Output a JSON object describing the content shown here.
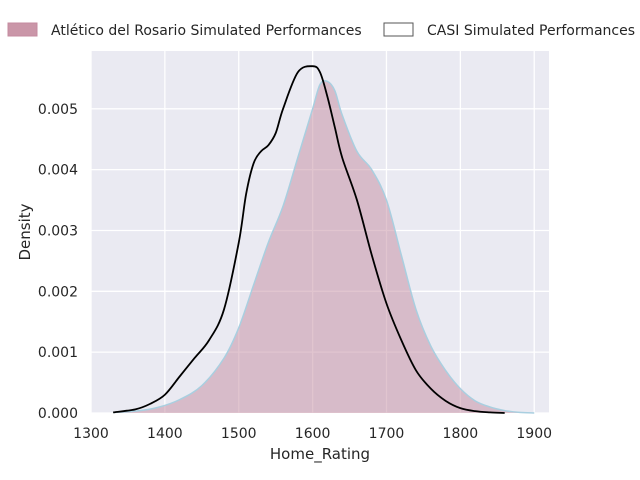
{
  "chart_data": {
    "type": "area",
    "title": "",
    "xlabel": "Home_Rating",
    "ylabel": "Density",
    "xlim": [
      1300,
      1920
    ],
    "ylim": [
      0,
      0.00595
    ],
    "xticks": [
      1300,
      1400,
      1500,
      1600,
      1700,
      1800,
      1900
    ],
    "yticks": [
      0,
      0.001,
      0.002,
      0.003,
      0.004,
      0.005
    ],
    "ytick_labels": [
      "0.000",
      "0.001",
      "0.002",
      "0.003",
      "0.004",
      "0.005"
    ],
    "grid": true,
    "legend_position": "top",
    "colors": {
      "background": "#eaeaf2",
      "grid": "#ffffff",
      "fill": "#c48b9f",
      "fill_edge": "#a9cfe0",
      "line": "#000000"
    },
    "series": [
      {
        "name": "Atlético del Rosario Simulated Performances",
        "style": "filled",
        "x": [
          1330,
          1360,
          1390,
          1420,
          1450,
          1480,
          1500,
          1520,
          1540,
          1560,
          1580,
          1600,
          1610,
          1620,
          1630,
          1640,
          1660,
          1680,
          1700,
          1720,
          1740,
          1760,
          1780,
          1800,
          1820,
          1840,
          1860,
          1880,
          1900
        ],
        "y": [
          1e-05,
          3e-05,
          9e-05,
          0.00022,
          0.00045,
          0.0009,
          0.0014,
          0.0021,
          0.0028,
          0.0034,
          0.0042,
          0.005,
          0.0054,
          0.00545,
          0.0053,
          0.0049,
          0.0043,
          0.004,
          0.0035,
          0.0026,
          0.0017,
          0.0011,
          0.0007,
          0.0004,
          0.0002,
          0.0001,
          4e-05,
          1e-05,
          0.0
        ]
      },
      {
        "name": "CASI Simulated Performances",
        "style": "line",
        "x": [
          1330,
          1360,
          1380,
          1400,
          1420,
          1440,
          1460,
          1480,
          1500,
          1510,
          1520,
          1530,
          1540,
          1550,
          1560,
          1580,
          1600,
          1610,
          1620,
          1630,
          1640,
          1660,
          1680,
          1700,
          1720,
          1740,
          1760,
          1780,
          1800,
          1820,
          1840,
          1860
        ],
        "y": [
          1e-05,
          6e-05,
          0.00015,
          0.0003,
          0.0006,
          0.0009,
          0.0012,
          0.0017,
          0.0028,
          0.0036,
          0.0041,
          0.0043,
          0.0044,
          0.0046,
          0.005,
          0.0056,
          0.0057,
          0.0056,
          0.0052,
          0.0047,
          0.0042,
          0.0035,
          0.0026,
          0.0018,
          0.0012,
          0.0007,
          0.0004,
          0.0002,
          8e-05,
          3e-05,
          1e-05,
          0.0
        ]
      }
    ]
  }
}
